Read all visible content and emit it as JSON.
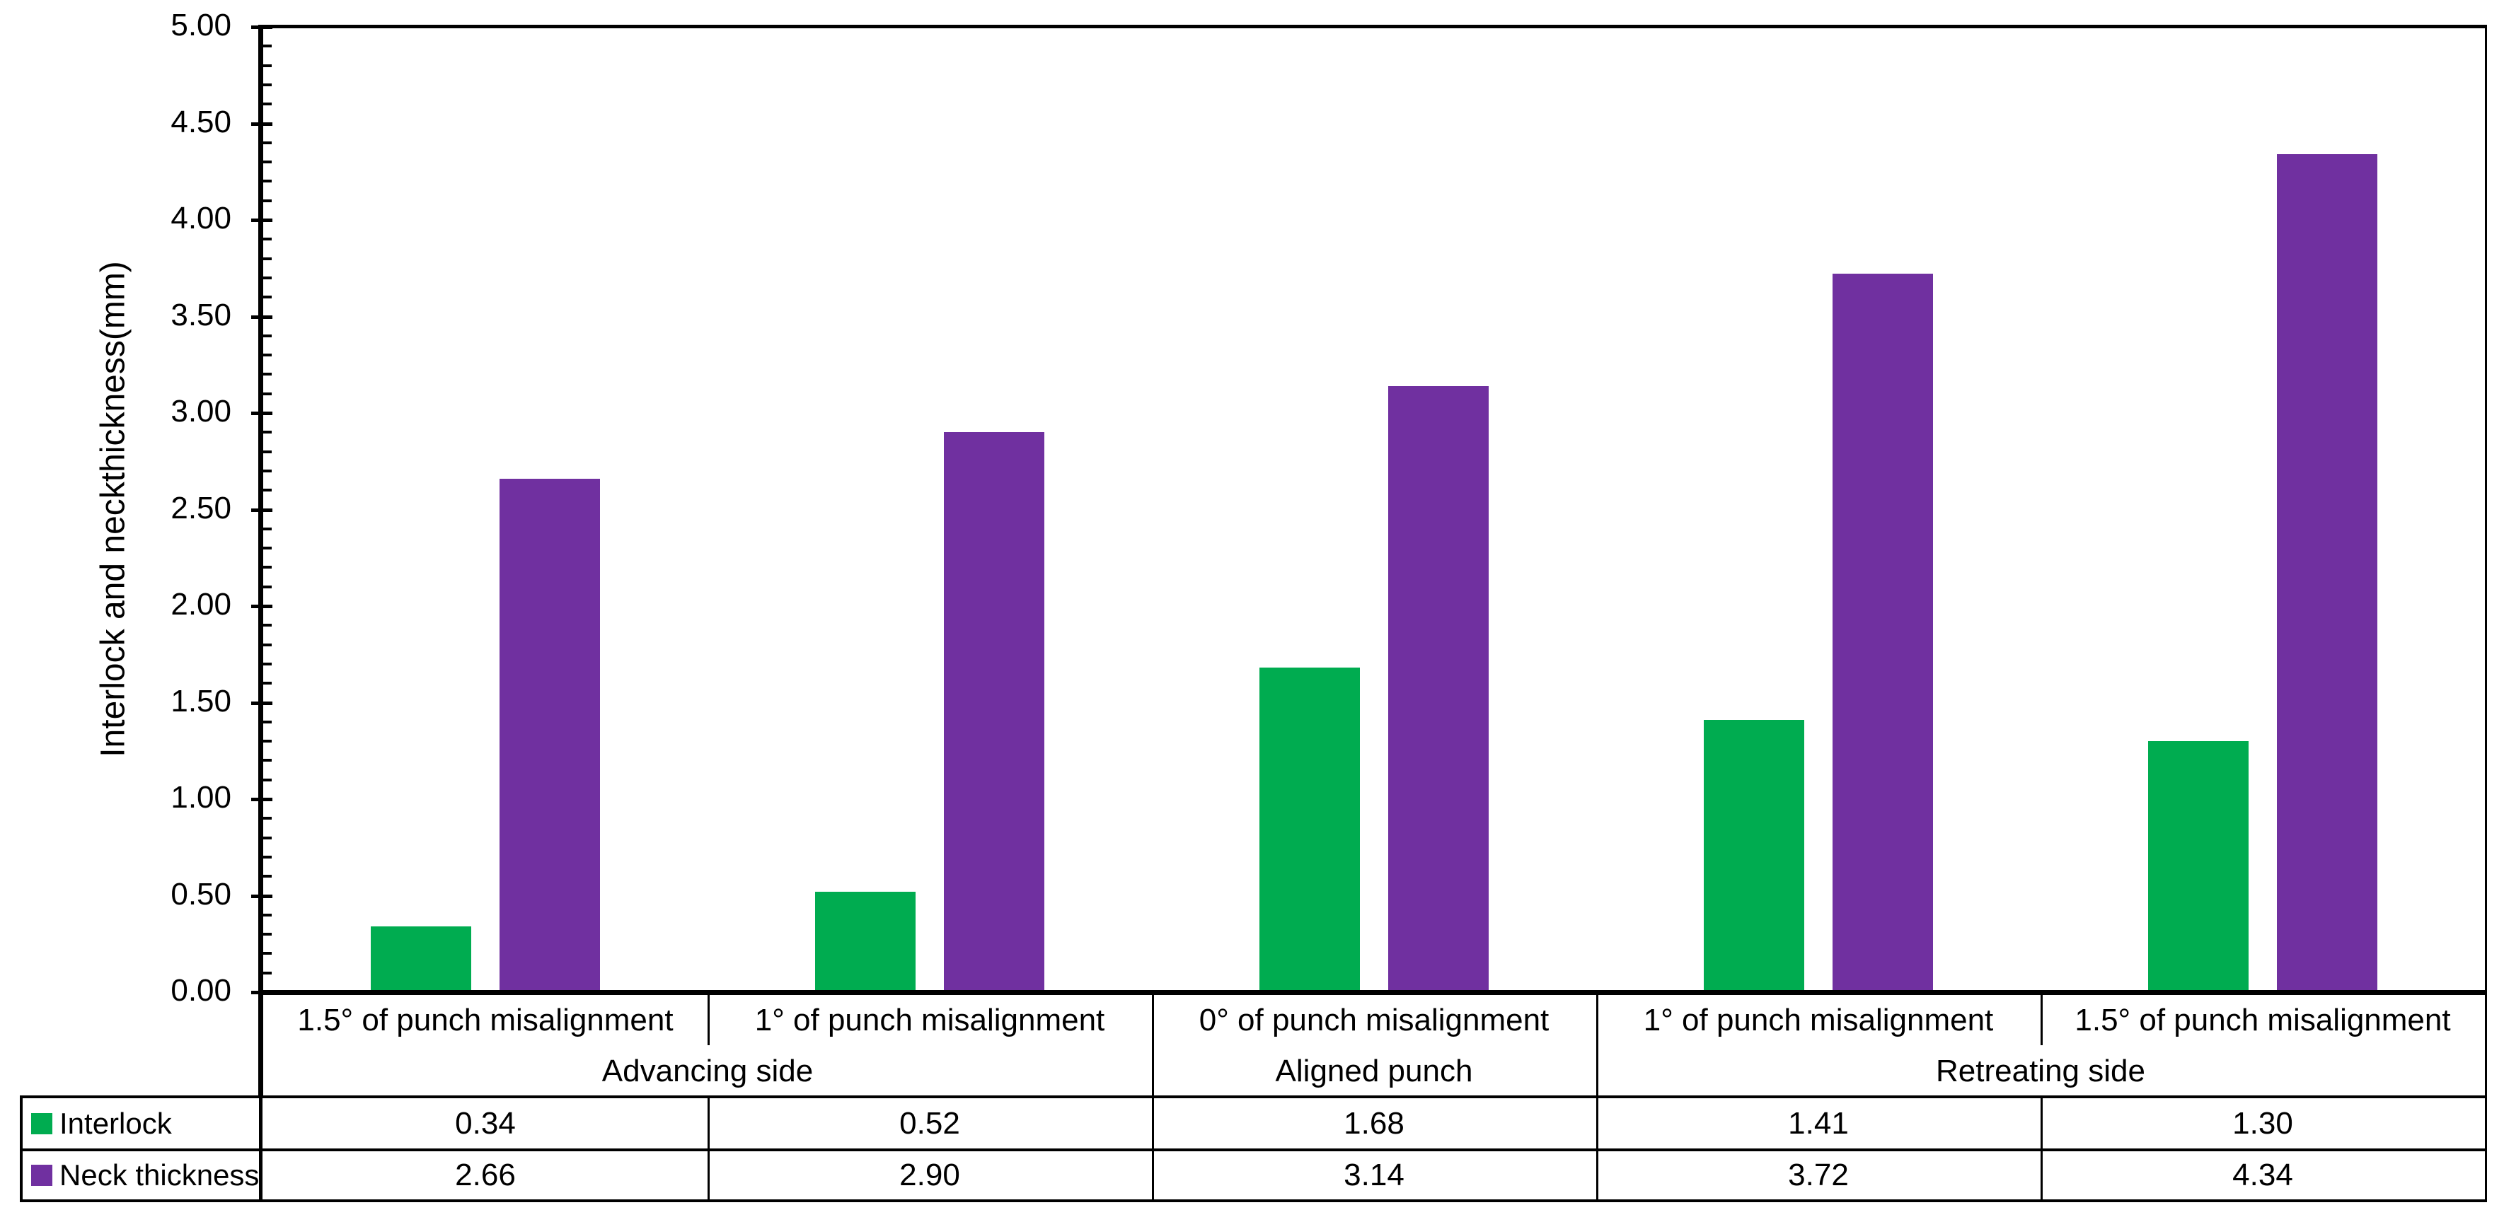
{
  "chart_data": {
    "type": "bar",
    "title": "",
    "ylabel": "Interlock and neckthickness(mm)",
    "xlabel": "",
    "ylim": [
      0,
      5
    ],
    "ytick_step": 0.5,
    "yminor_step": 0.1,
    "ytick_labels": [
      "0.00",
      "0.50",
      "1.00",
      "1.50",
      "2.00",
      "2.50",
      "3.00",
      "3.50",
      "4.00",
      "4.50",
      "5.00"
    ],
    "grid": false,
    "legend_position": "data-table-left",
    "value_decimals": 2,
    "categories": [
      "1.5° of punch misalignment",
      "1° of punch misalignment",
      "0° of punch misalignment",
      "1° of punch misalignment",
      "1.5° of punch misalignment"
    ],
    "group_labels": [
      {
        "label": "Advancing side",
        "span": 2
      },
      {
        "label": "Aligned punch",
        "span": 1
      },
      {
        "label": "Retreating side",
        "span": 2
      }
    ],
    "series": [
      {
        "name": "Interlock",
        "color": "#00AC50",
        "values": [
          0.34,
          0.52,
          1.68,
          1.41,
          1.3
        ]
      },
      {
        "name": "Neck thickness",
        "color": "#7030A0",
        "values": [
          2.66,
          2.9,
          3.14,
          3.72,
          4.34
        ]
      }
    ],
    "colors": {
      "axis": "#000000",
      "text": "#000000",
      "background": "#FFFFFF"
    }
  }
}
